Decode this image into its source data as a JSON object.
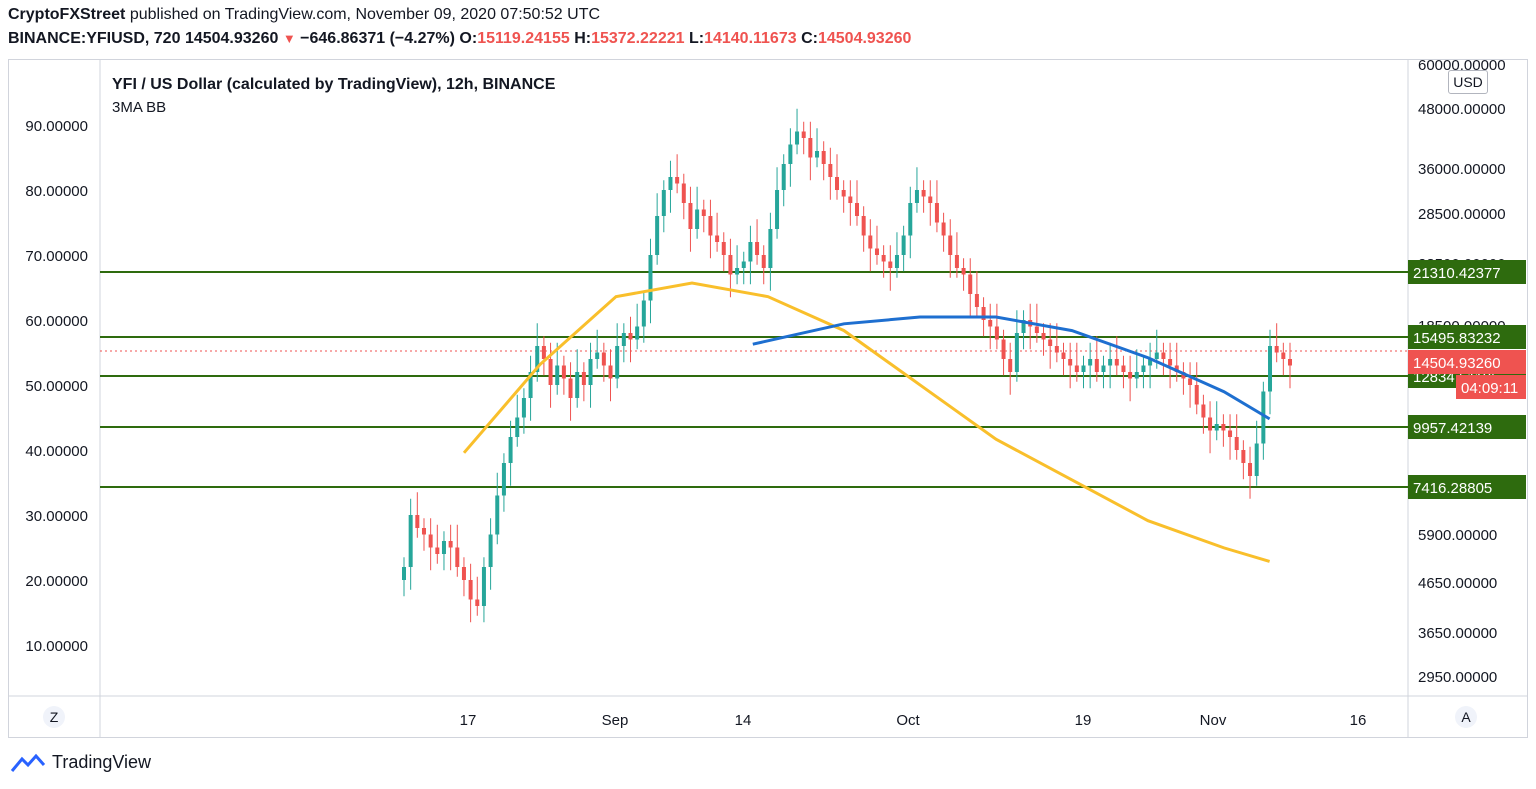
{
  "header": {
    "publisher": "CryptoFXStreet",
    "published_text": "published on TradingView.com, November 09, 2020 07:50:52 UTC",
    "symbol": "BINANCE:YFIUSD, 720",
    "last": "14504.93260",
    "change": "−646.86371 (−4.27%)",
    "o_label": "O:",
    "o": "15119.24155",
    "h_label": "H:",
    "h": "15372.22221",
    "l_label": "L:",
    "l": "14140.11673",
    "c_label": "C:",
    "c": "14504.93260"
  },
  "footer": {
    "brand": "TradingView"
  },
  "chart_data": {
    "type": "candlestick",
    "title": "YFI / US Dollar (calculated by TradingView), 12h, BINANCE",
    "subtitle": "3MA BB",
    "currency": "USD",
    "left_axis": {
      "ticks": [
        "90.00000",
        "80.00000",
        "70.00000",
        "60.00000",
        "50.00000",
        "40.00000",
        "30.00000",
        "20.00000",
        "10.00000"
      ],
      "values": [
        90,
        80,
        70,
        60,
        50,
        40,
        30,
        20,
        10
      ]
    },
    "right_axis": {
      "ticks": [
        "60000.00000",
        "48000.00000",
        "36000.00000",
        "28500.00000",
        "23500.00000",
        "18500.00000",
        "12500.00000",
        "5900.00000",
        "4650.00000",
        "3650.00000",
        "2950.00000"
      ]
    },
    "x_axis": {
      "ticks": [
        "17",
        "Sep",
        "14",
        "Oct",
        "19",
        "Nov",
        "16"
      ]
    },
    "scale_buttons": {
      "left": "Z",
      "right": "A"
    },
    "horizontal_levels": [
      {
        "label": "21310.42377",
        "value": 21310.42377
      },
      {
        "label": "15495.83232",
        "value": 15495.83232
      },
      {
        "label": "12834.61106",
        "value": 12834.61106
      },
      {
        "label": "9957.42139",
        "value": 9957.42139
      },
      {
        "label": "7416.28805",
        "value": 7416.28805
      }
    ],
    "price_label": "14504.93260",
    "countdown": "04:09:11",
    "colors": {
      "up": "#26a69a",
      "down": "#ef5350",
      "levels": "#2e6b0e",
      "ma_yellow": "#f9bf2b",
      "ma_blue": "#1e6fd0"
    },
    "candles_close": [
      22,
      30,
      28,
      27,
      25,
      24,
      26,
      25,
      22,
      20,
      17,
      16,
      22,
      27,
      33,
      38,
      42,
      45,
      48,
      52,
      56,
      54,
      50,
      53,
      51,
      48,
      52,
      50,
      54,
      55,
      53,
      51,
      56,
      58,
      57,
      59,
      63,
      70,
      76,
      80,
      82,
      81,
      78,
      74,
      77,
      76,
      73,
      72,
      70,
      67,
      68,
      69,
      72,
      70,
      68,
      74,
      80,
      84,
      87,
      89,
      88,
      85,
      86,
      84,
      82,
      80,
      79,
      78,
      76,
      73,
      71,
      70,
      69,
      68,
      70,
      73,
      78,
      80,
      79,
      78,
      75,
      73,
      70,
      68,
      67,
      64,
      62,
      60,
      59,
      57,
      54,
      52,
      58,
      60,
      59,
      58,
      57,
      56,
      55,
      54,
      53,
      52,
      53,
      54,
      52,
      53,
      54,
      53,
      52,
      51,
      52,
      53,
      54,
      55,
      54,
      53,
      52,
      51,
      50,
      47,
      45,
      43,
      44,
      43,
      42,
      40,
      38,
      36,
      41,
      49,
      56,
      55,
      54,
      53
    ],
    "ma_yellow_points": [
      [
        0.3,
        0.58
      ],
      [
        0.35,
        0.45
      ],
      [
        0.4,
        0.35
      ],
      [
        0.45,
        0.33
      ],
      [
        0.5,
        0.35
      ],
      [
        0.55,
        0.4
      ],
      [
        0.6,
        0.48
      ],
      [
        0.65,
        0.56
      ],
      [
        0.7,
        0.62
      ],
      [
        0.75,
        0.68
      ],
      [
        0.8,
        0.72
      ],
      [
        0.83,
        0.74
      ]
    ],
    "ma_blue_points": [
      [
        0.49,
        0.42
      ],
      [
        0.55,
        0.39
      ],
      [
        0.6,
        0.38
      ],
      [
        0.65,
        0.38
      ],
      [
        0.7,
        0.4
      ],
      [
        0.75,
        0.44
      ],
      [
        0.8,
        0.49
      ],
      [
        0.83,
        0.53
      ]
    ]
  }
}
